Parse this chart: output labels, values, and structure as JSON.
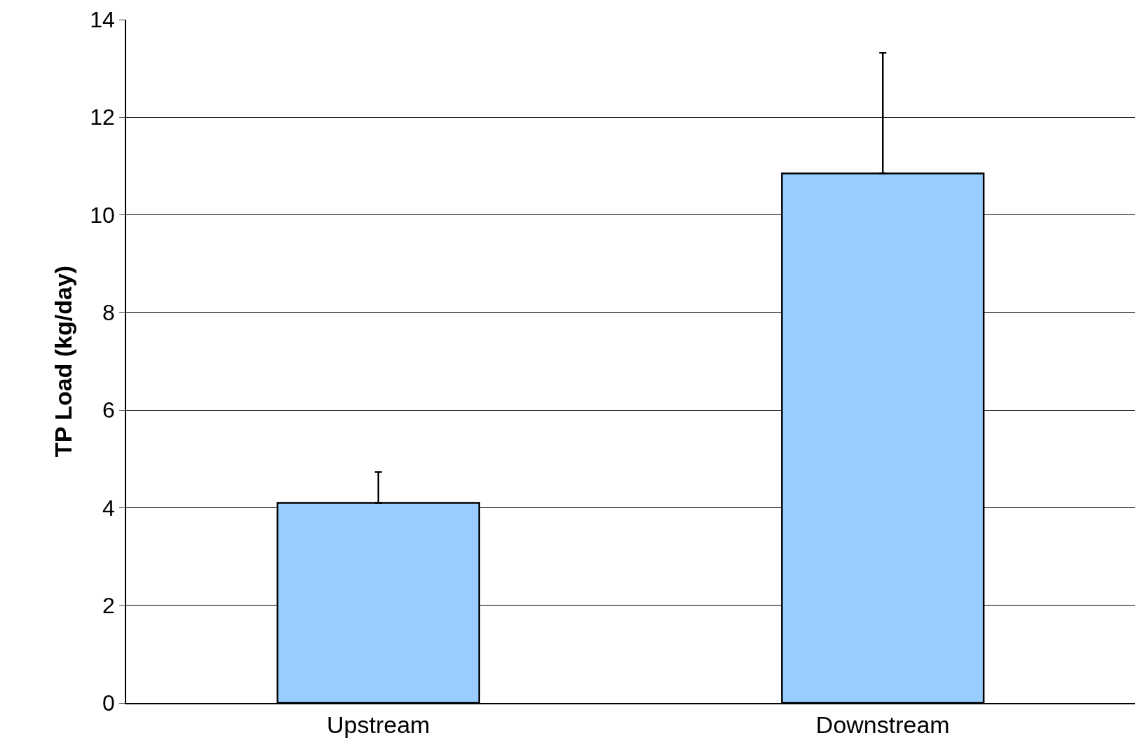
{
  "chart_data": {
    "type": "bar",
    "ylabel": "TP Load (kg/day)",
    "categories": [
      "Upstream",
      "Downstream"
    ],
    "values": [
      4.1,
      10.85
    ],
    "errors": [
      [
        4.1,
        4.73
      ],
      [
        10.85,
        13.32
      ]
    ],
    "color": "#99ccff",
    "ylim": [
      0,
      14
    ],
    "yticks": [
      0,
      2,
      4,
      6,
      8,
      10,
      12,
      14
    ],
    "grid": "y"
  }
}
